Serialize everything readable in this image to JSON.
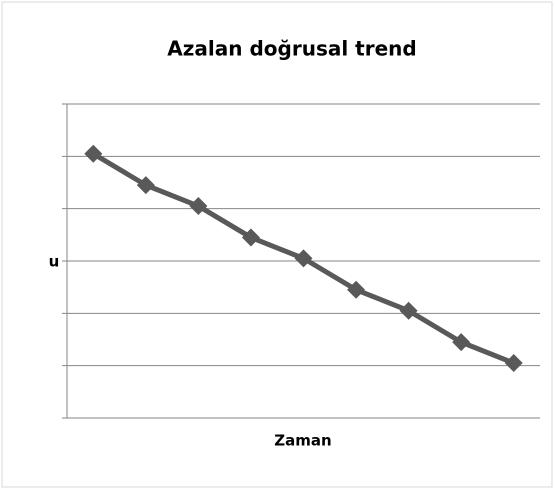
{
  "chart_data": {
    "type": "line",
    "title": "Azalan doğrusal trend",
    "y_label": "u",
    "x_label": "Zaman",
    "categories": [
      null,
      null,
      null,
      null,
      null,
      null,
      null,
      null,
      null
    ],
    "values": [
      5.05,
      4.45,
      4.05,
      3.45,
      3.05,
      2.45,
      2.05,
      1.45,
      1.05
    ],
    "color": "#595959",
    "ylim": [
      0,
      6
    ],
    "yticks": [
      0,
      1,
      2,
      3,
      4,
      5,
      6
    ],
    "grid": true
  }
}
